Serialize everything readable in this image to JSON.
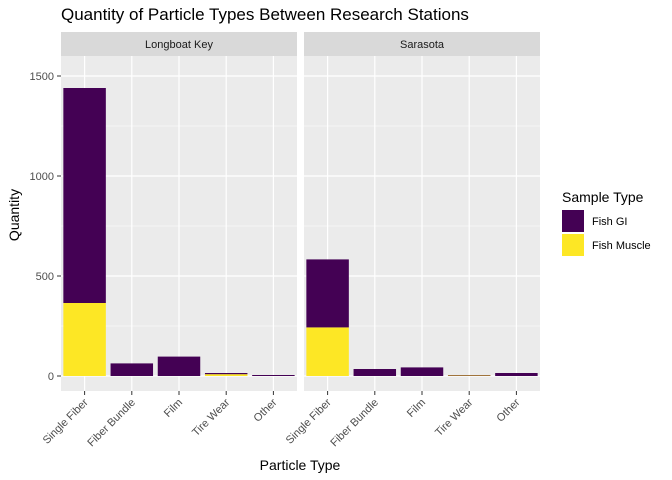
{
  "chart_data": {
    "type": "bar",
    "stacked": true,
    "title": "Quantity of Particle Types Between Research Stations",
    "xlabel": "Particle Type",
    "ylabel": "Quantity",
    "ylim": [
      0,
      1600
    ],
    "yticks": [
      0,
      500,
      1000,
      1500
    ],
    "categories": [
      "Single Fiber",
      "Fiber Bundle",
      "Film",
      "Tire Wear",
      "Other"
    ],
    "legend": {
      "title": "Sample Type",
      "position": "right",
      "entries": [
        {
          "name": "Fish GI",
          "color": "#440154"
        },
        {
          "name": "Fish Muscle",
          "color": "#FDE725"
        }
      ]
    },
    "panel_background": "#EBEBEB",
    "strip_background": "#D9D9D9",
    "grid": true,
    "facets": [
      {
        "label": "Longboat Key",
        "series": [
          {
            "name": "Fish GI",
            "values": [
              1075,
              63,
              97,
              6,
              5
            ]
          },
          {
            "name": "Fish Muscle",
            "values": [
              365,
              0,
              0,
              9,
              0
            ]
          }
        ]
      },
      {
        "label": "Sarasota",
        "series": [
          {
            "name": "Fish GI",
            "values": [
              340,
              35,
              43,
              2,
              15
            ]
          },
          {
            "name": "Fish Muscle",
            "values": [
              243,
              0,
              0,
              3,
              0
            ]
          }
        ]
      }
    ]
  }
}
